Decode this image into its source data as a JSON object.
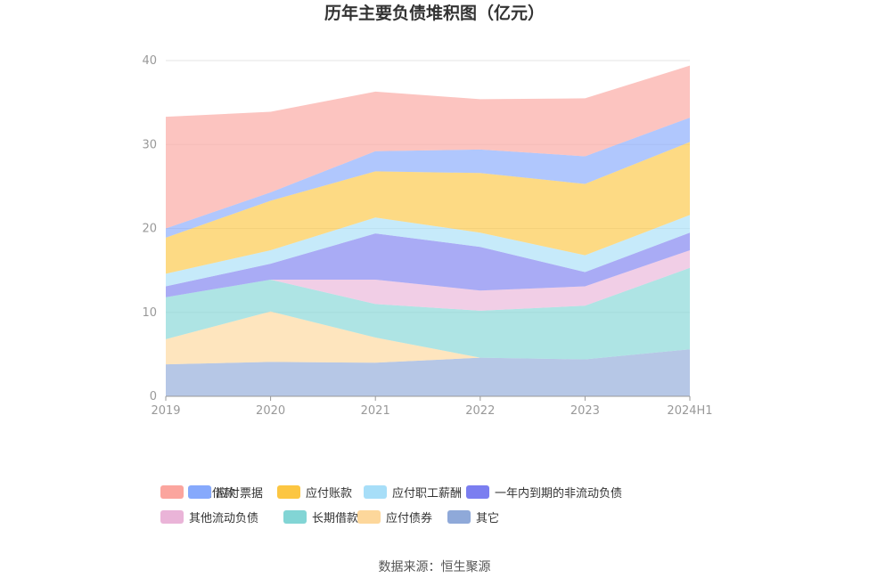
{
  "chart_data": {
    "type": "area",
    "stacked": true,
    "title": "历年主要负债堆积图（亿元）",
    "categories": [
      "2019",
      "2020",
      "2021",
      "2022",
      "2023",
      "2024H1"
    ],
    "ylim": [
      0,
      40
    ],
    "yticks": [
      0,
      10,
      20,
      30,
      40
    ],
    "grid": true,
    "legend_position": "bottom",
    "series": [
      {
        "name": "其它",
        "color": "#8fa9d9",
        "values": [
          3.8,
          4.1,
          4.0,
          4.6,
          4.4,
          5.6
        ]
      },
      {
        "name": "应付债券",
        "color": "#fdd79b",
        "values": [
          3.0,
          6.0,
          3.0,
          0.0,
          0.0,
          0.0
        ]
      },
      {
        "name": "长期借款",
        "color": "#82d5d5",
        "values": [
          5.0,
          3.8,
          4.0,
          5.6,
          6.4,
          9.7
        ]
      },
      {
        "name": "其他流动负债",
        "color": "#eab4d8",
        "values": [
          0.0,
          0.0,
          2.9,
          2.4,
          2.3,
          2.1
        ]
      },
      {
        "name": "一年内到期的非流动负债",
        "color": "#7b7ef0",
        "values": [
          1.3,
          1.9,
          5.5,
          5.2,
          1.7,
          2.1
        ]
      },
      {
        "name": "应付职工薪酬",
        "color": "#a7def8",
        "values": [
          1.5,
          1.6,
          1.9,
          1.7,
          2.0,
          2.1
        ]
      },
      {
        "name": "应付账款",
        "color": "#fcc642",
        "values": [
          4.3,
          5.9,
          5.5,
          7.1,
          8.5,
          8.7
        ]
      },
      {
        "name": "应付票据",
        "color": "#86a9fc",
        "values": [
          1.1,
          1.0,
          2.4,
          2.8,
          3.3,
          2.9
        ]
      },
      {
        "name": "短期借款",
        "color": "#fba59e",
        "values": [
          13.3,
          9.6,
          7.1,
          6.0,
          6.9,
          6.2
        ]
      }
    ],
    "legend_order": [
      "短期借款",
      "应付票据",
      "应付账款",
      "应付职工薪酬",
      "一年内到期的非流动负债",
      "其他流动负债",
      "长期借款",
      "应付债券",
      "其它"
    ]
  },
  "source_text": "数据来源：恒生聚源"
}
